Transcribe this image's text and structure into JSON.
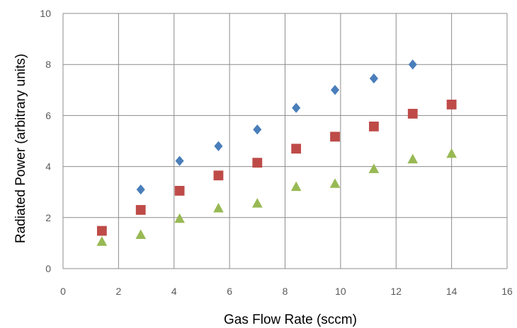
{
  "chart_data": {
    "type": "scatter",
    "title": "",
    "xlabel": "Gas Flow Rate (sccm)",
    "ylabel": "Radiated Power (arbitrary units)",
    "xlim": [
      0,
      16
    ],
    "ylim": [
      0,
      10
    ],
    "xticks": [
      "0",
      "2",
      "4",
      "6",
      "8",
      "10",
      "12",
      "14",
      "16"
    ],
    "yticks": [
      "0",
      "2",
      "4",
      "6",
      "8",
      "10"
    ],
    "grid": true,
    "legend": "none",
    "series": [
      {
        "marker": "diamond",
        "color": "#4a7ebb",
        "x": [
          2.8,
          4.2,
          5.6,
          7.0,
          8.4,
          9.8,
          11.2,
          12.6
        ],
        "y": [
          3.1,
          4.22,
          4.8,
          5.45,
          6.3,
          7.0,
          7.45,
          8.0
        ]
      },
      {
        "marker": "square",
        "color": "#be4b48",
        "x": [
          1.4,
          2.8,
          4.2,
          5.6,
          7.0,
          8.4,
          9.8,
          11.2,
          12.6,
          14.0
        ],
        "y": [
          1.48,
          2.3,
          3.05,
          3.65,
          4.15,
          4.7,
          5.17,
          5.57,
          6.07,
          6.43
        ]
      },
      {
        "marker": "triangle",
        "color": "#98b954",
        "x": [
          1.4,
          2.8,
          4.2,
          5.6,
          7.0,
          8.4,
          9.8,
          11.2,
          12.6,
          14.0
        ],
        "y": [
          1.05,
          1.32,
          1.95,
          2.36,
          2.55,
          3.2,
          3.32,
          3.9,
          4.28,
          4.5
        ]
      }
    ]
  }
}
